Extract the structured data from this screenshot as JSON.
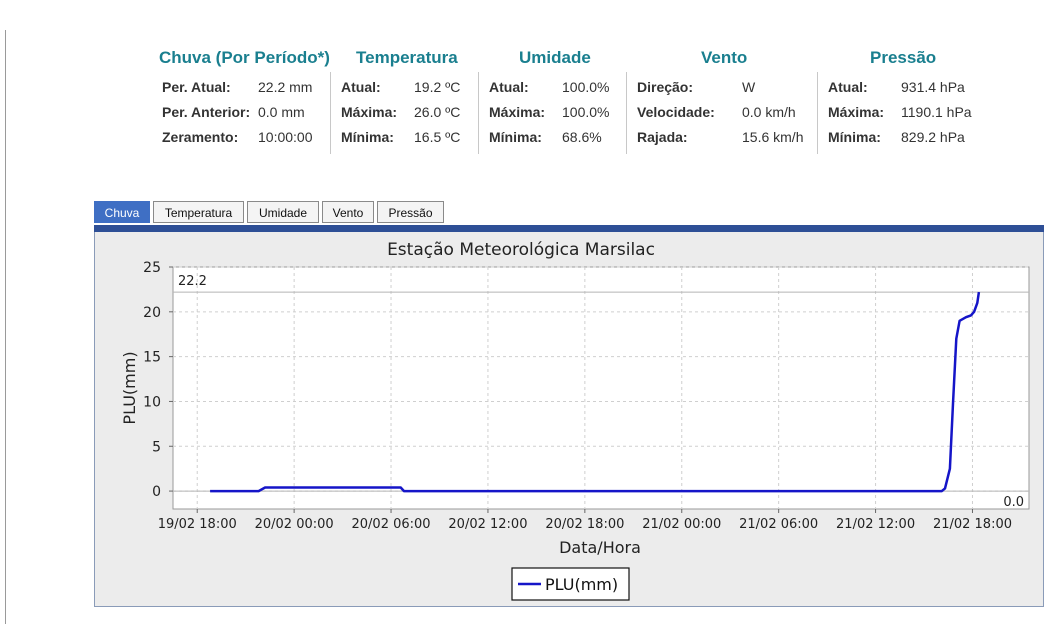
{
  "summary": {
    "chuva": {
      "title": "Chuva (Por Período*)",
      "rows": [
        {
          "label": "Per. Atual:",
          "value": "22.2 mm"
        },
        {
          "label": "Per. Anterior:",
          "value": "0.0 mm"
        },
        {
          "label": "Zeramento:",
          "value": "10:00:00"
        }
      ]
    },
    "temperatura": {
      "title": "Temperatura",
      "rows": [
        {
          "label": "Atual:",
          "value": "19.2 ºC"
        },
        {
          "label": "Máxima:",
          "value": "26.0 ºC"
        },
        {
          "label": "Mínima:",
          "value": "16.5 ºC"
        }
      ]
    },
    "umidade": {
      "title": "Umidade",
      "rows": [
        {
          "label": "Atual:",
          "value": "100.0%"
        },
        {
          "label": "Máxima:",
          "value": "100.0%"
        },
        {
          "label": "Mínima:",
          "value": "68.6%"
        }
      ]
    },
    "vento": {
      "title": "Vento",
      "rows": [
        {
          "label": "Direção:",
          "value": "W"
        },
        {
          "label": "Velocidade:",
          "value": "0.0 km/h"
        },
        {
          "label": "Rajada:",
          "value": "15.6 km/h"
        }
      ]
    },
    "pressao": {
      "title": "Pressão",
      "rows": [
        {
          "label": "Atual:",
          "value": "931.4 hPa"
        },
        {
          "label": "Máxima:",
          "value": "1190.1 hPa"
        },
        {
          "label": "Mínima:",
          "value": "829.2 hPa"
        }
      ]
    }
  },
  "tabs": [
    {
      "label": "Chuva",
      "active": true
    },
    {
      "label": "Temperatura",
      "active": false
    },
    {
      "label": "Umidade",
      "active": false
    },
    {
      "label": "Vento",
      "active": false
    },
    {
      "label": "Pressão",
      "active": false
    }
  ],
  "colors": {
    "series": "#1515c8",
    "accent_title": "#1a7f8f",
    "tab_active": "#3f6fc4",
    "tab_bar": "#2e4f96"
  },
  "chart_data": {
    "type": "line",
    "title": "Estação Meteorológica Marsilac",
    "xlabel": "Data/Hora",
    "ylabel": "PLU(mm)",
    "ylim": [
      -2,
      25
    ],
    "yticks": [
      0,
      5,
      10,
      15,
      20,
      25
    ],
    "xlim_hours": [
      -1.5,
      51.5
    ],
    "xticks": [
      {
        "h": 0,
        "label": "19/02 18:00"
      },
      {
        "h": 6,
        "label": "20/02 00:00"
      },
      {
        "h": 12,
        "label": "20/02 06:00"
      },
      {
        "h": 18,
        "label": "20/02 12:00"
      },
      {
        "h": 24,
        "label": "20/02 18:00"
      },
      {
        "h": 30,
        "label": "21/02 00:00"
      },
      {
        "h": 36,
        "label": "21/02 06:00"
      },
      {
        "h": 42,
        "label": "21/02 12:00"
      },
      {
        "h": 48,
        "label": "21/02 18:00"
      }
    ],
    "grid": true,
    "legend": "bottom-center",
    "markers": [
      {
        "value": 22.2,
        "label": "22.2"
      },
      {
        "value": 0.0,
        "label": "0.0"
      }
    ],
    "series": [
      {
        "name": "PLU(mm)",
        "points": [
          [
            0.8,
            0
          ],
          [
            3.8,
            0
          ],
          [
            4.2,
            0.4
          ],
          [
            12.6,
            0.4
          ],
          [
            12.8,
            0
          ],
          [
            46.1,
            0
          ],
          [
            46.3,
            0.3
          ],
          [
            46.6,
            2.5
          ],
          [
            46.8,
            10
          ],
          [
            47.0,
            17
          ],
          [
            47.2,
            19
          ],
          [
            47.6,
            19.4
          ],
          [
            47.9,
            19.6
          ],
          [
            48.1,
            20
          ],
          [
            48.3,
            21
          ],
          [
            48.4,
            22.2
          ]
        ]
      }
    ]
  }
}
